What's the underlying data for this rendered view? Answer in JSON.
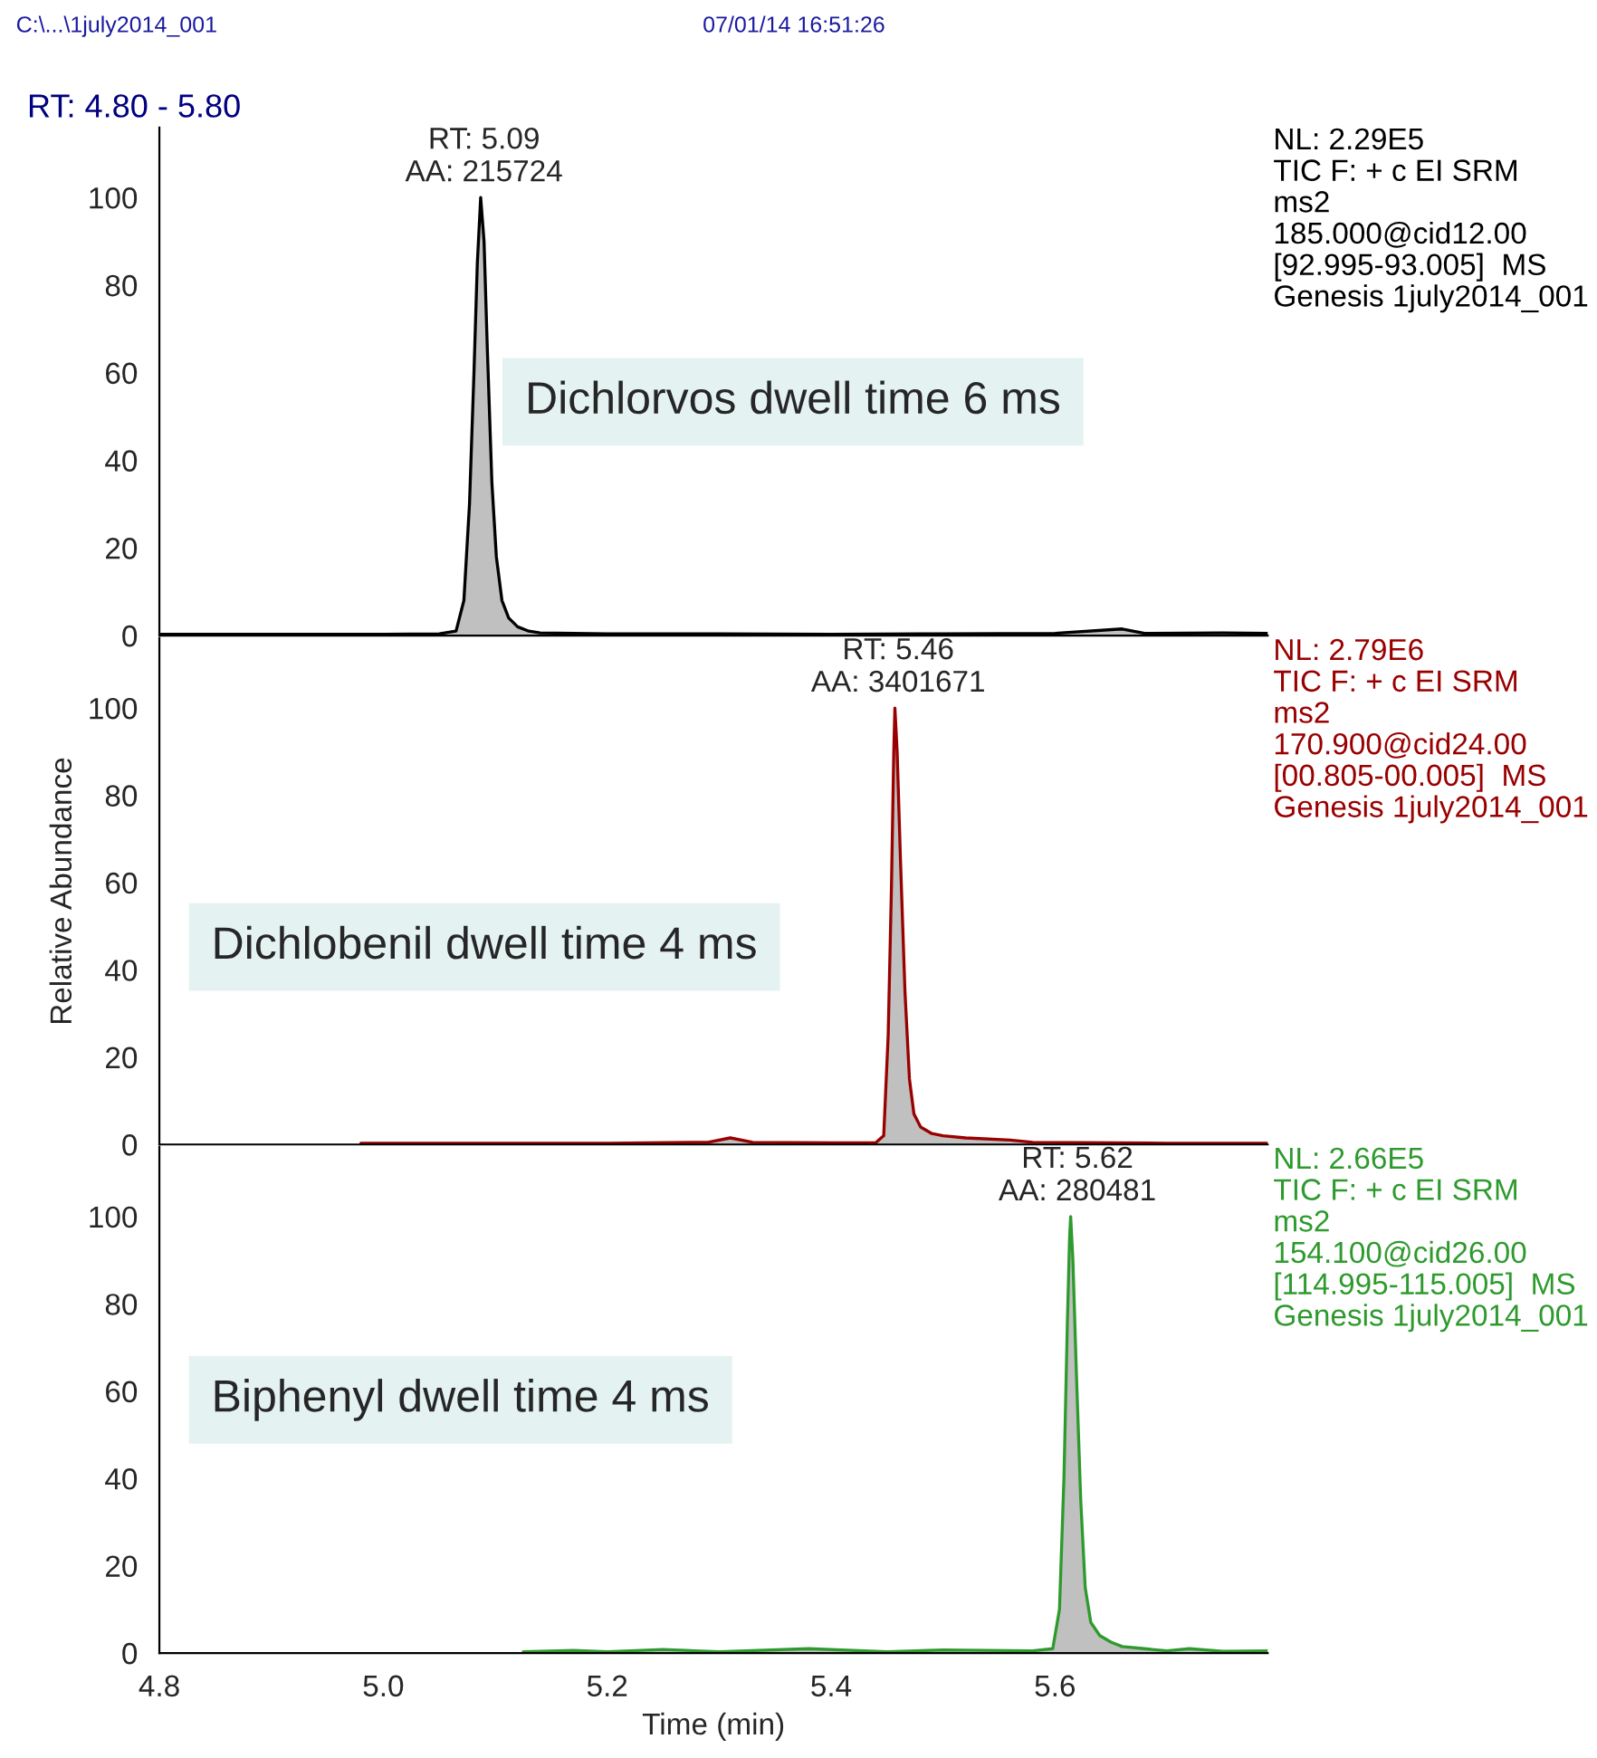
{
  "chart_data": [
    {
      "type": "area",
      "title": "RT: 4.80 - 5.80",
      "xlim": [
        4.8,
        5.79
      ],
      "ylim": [
        0,
        116
      ],
      "yticks": [
        0,
        20,
        40,
        60,
        80,
        100
      ],
      "xticks": [
        4.8,
        5.0,
        5.2,
        5.4,
        5.6
      ],
      "tick_labels": "y",
      "series": [
        {
          "color": "#000000",
          "x": [
            4.8,
            4.9,
            5.0,
            5.05,
            5.065,
            5.072,
            5.077,
            5.081,
            5.084,
            5.087,
            5.09,
            5.093,
            5.097,
            5.101,
            5.106,
            5.112,
            5.12,
            5.13,
            5.14,
            5.2,
            5.3,
            5.4,
            5.5,
            5.6,
            5.66,
            5.68,
            5.75,
            5.79
          ],
          "values": [
            0.3,
            0.3,
            0.3,
            0.4,
            1,
            8,
            30,
            60,
            85,
            100,
            90,
            65,
            35,
            18,
            8,
            4,
            2,
            1,
            0.6,
            0.4,
            0.4,
            0.3,
            0.4,
            0.5,
            1.5,
            0.5,
            0.6,
            0.5
          ]
        }
      ],
      "annotations": [
        "NL: 2.29E5\nTIC F: + c EI SRM\nms2\n185.000@cid12.00\n[92.995-93.005]  MS\nGenesis 1july2014_001",
        "Dichlorvos dwell time 6 ms",
        "C:\\...\\1july2014_001",
        "07/01/14 16:51:26",
        {
          "text": "RT: 5.09\nAA: 215724",
          "x": 5.09,
          "y": 100
        }
      ]
    },
    {
      "type": "area",
      "ylabel": "Relative Abundance",
      "xlim": [
        4.8,
        5.79
      ],
      "ylim": [
        0,
        116
      ],
      "yticks": [
        0,
        20,
        40,
        60,
        80,
        100
      ],
      "xticks": [
        4.8,
        5.0,
        5.2,
        5.4,
        5.6
      ],
      "tick_labels": "y",
      "series": [
        {
          "color": "#990000",
          "x": [
            4.98,
            5.1,
            5.2,
            5.29,
            5.31,
            5.33,
            5.4,
            5.44,
            5.447,
            5.451,
            5.454,
            5.456,
            5.457,
            5.459,
            5.462,
            5.466,
            5.47,
            5.474,
            5.48,
            5.49,
            5.5,
            5.52,
            5.56,
            5.58,
            5.7,
            5.79
          ],
          "values": [
            0.3,
            0.3,
            0.3,
            0.5,
            1.5,
            0.5,
            0.4,
            0.4,
            2,
            25,
            60,
            90,
            100,
            90,
            65,
            35,
            15,
            7,
            4,
            2.5,
            2,
            1.5,
            1,
            0.5,
            0.3,
            0.3
          ]
        }
      ],
      "annotations": [
        "NL: 2.79E6\nTIC F: + c EI SRM\nms2\n170.900@cid24.00\n[00.805-00.005]  MS\nGenesis 1july2014_001",
        "Dichlobenil dwell time 4 ms",
        {
          "text": "RT: 5.46\nAA: 3401671",
          "x": 5.46,
          "y": 100
        }
      ]
    },
    {
      "type": "area",
      "xlabel": "Time (min)",
      "xlim": [
        4.8,
        5.79
      ],
      "ylim": [
        0,
        116
      ],
      "yticks": [
        0,
        20,
        40,
        60,
        80,
        100
      ],
      "xticks": [
        {
          "value": 4.8,
          "label": "4.8"
        },
        {
          "value": 5.0,
          "label": "5.0"
        },
        5.2,
        5.4,
        5.6
      ],
      "series": [
        {
          "color": "#2e9a2e",
          "x": [
            5.125,
            5.17,
            5.2,
            5.25,
            5.3,
            5.38,
            5.45,
            5.5,
            5.58,
            5.598,
            5.604,
            5.608,
            5.611,
            5.613,
            5.614,
            5.616,
            5.619,
            5.623,
            5.627,
            5.632,
            5.64,
            5.65,
            5.66,
            5.68,
            5.7,
            5.72,
            5.75,
            5.79
          ],
          "values": [
            0.3,
            0.6,
            0.3,
            0.8,
            0.3,
            1,
            0.3,
            0.7,
            0.5,
            1,
            10,
            40,
            75,
            95,
            100,
            90,
            65,
            35,
            15,
            7,
            4,
            2.5,
            1.5,
            1,
            0.5,
            1,
            0.4,
            0.5
          ]
        }
      ],
      "annotations": [
        "NL: 2.66E5\nTIC F: + c EI SRM\nms2\n154.100@cid26.00\n[114.995-115.005]  MS\nGenesis 1july2014_001",
        "Biphenyl dwell time 4 ms",
        {
          "text": "RT: 5.62\nAA: 280481",
          "x": 5.62,
          "y": 100
        }
      ]
    }
  ]
}
